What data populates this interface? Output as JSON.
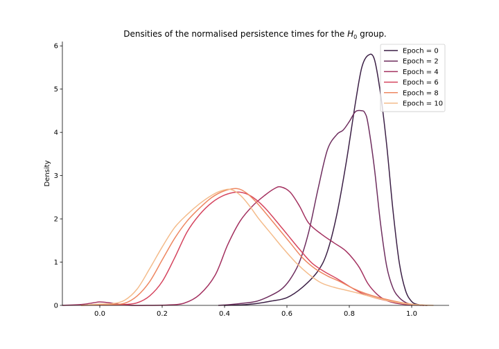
{
  "chart_data": {
    "type": "line",
    "title_prefix": "Densities of the normalised persistence times for the ",
    "title_math_base": "H",
    "title_math_sub": "0",
    "title_suffix": " group.",
    "xlabel": "",
    "ylabel": "Density",
    "xlim": [
      -0.12,
      1.12
    ],
    "ylim": [
      0,
      6.1
    ],
    "xticks": [
      0.0,
      0.2,
      0.4,
      0.6,
      0.8,
      1.0
    ],
    "xtick_labels": [
      "0.0",
      "0.2",
      "0.4",
      "0.6",
      "0.8",
      "1.0"
    ],
    "yticks": [
      0,
      1,
      2,
      3,
      4,
      5,
      6
    ],
    "ytick_labels": [
      "0",
      "1",
      "2",
      "3",
      "4",
      "5",
      "6"
    ],
    "grid": false,
    "legend_position": "top-right",
    "series": [
      {
        "name": "Epoch = 0",
        "color": "#3b1f45",
        "x": [
          0.4,
          0.45,
          0.5,
          0.55,
          0.6,
          0.65,
          0.7,
          0.73,
          0.76,
          0.79,
          0.82,
          0.84,
          0.86,
          0.88,
          0.9,
          0.92,
          0.94,
          0.96,
          0.98,
          1.0,
          1.02,
          1.05
        ],
        "y": [
          0.0,
          0.01,
          0.04,
          0.1,
          0.18,
          0.42,
          0.8,
          1.25,
          2.1,
          3.3,
          4.7,
          5.5,
          5.78,
          5.7,
          4.9,
          3.7,
          2.2,
          1.0,
          0.35,
          0.09,
          0.02,
          0.0
        ]
      },
      {
        "name": "Epoch = 2",
        "color": "#6e2d5e",
        "x": [
          0.38,
          0.42,
          0.46,
          0.5,
          0.54,
          0.58,
          0.61,
          0.64,
          0.67,
          0.7,
          0.73,
          0.76,
          0.78,
          0.8,
          0.82,
          0.84,
          0.85,
          0.86,
          0.88,
          0.9,
          0.92,
          0.94,
          0.96,
          0.98,
          1.0,
          1.03
        ],
        "y": [
          0.0,
          0.02,
          0.05,
          0.09,
          0.2,
          0.36,
          0.6,
          1.0,
          1.7,
          2.7,
          3.6,
          3.95,
          4.05,
          4.25,
          4.48,
          4.5,
          4.45,
          4.2,
          3.2,
          1.9,
          0.9,
          0.4,
          0.18,
          0.07,
          0.02,
          0.0
        ]
      },
      {
        "name": "Epoch = 4",
        "color": "#a3305f",
        "x": [
          -0.12,
          -0.06,
          -0.02,
          0.0,
          0.03,
          0.06,
          0.1,
          0.16,
          0.22,
          0.27,
          0.32,
          0.37,
          0.41,
          0.45,
          0.49,
          0.53,
          0.56,
          0.58,
          0.61,
          0.64,
          0.67,
          0.71,
          0.75,
          0.79,
          0.83,
          0.86,
          0.89,
          0.92,
          0.95,
          0.98,
          1.01,
          1.04
        ],
        "y": [
          0.0,
          0.02,
          0.06,
          0.08,
          0.06,
          0.03,
          0.0,
          0.0,
          0.01,
          0.05,
          0.25,
          0.7,
          1.4,
          1.95,
          2.3,
          2.55,
          2.7,
          2.74,
          2.62,
          2.3,
          1.9,
          1.65,
          1.45,
          1.25,
          0.9,
          0.5,
          0.25,
          0.11,
          0.05,
          0.02,
          0.01,
          0.0
        ]
      },
      {
        "name": "Epoch = 6",
        "color": "#d5445e",
        "x": [
          -0.06,
          0.0,
          0.04,
          0.08,
          0.12,
          0.16,
          0.2,
          0.24,
          0.28,
          0.32,
          0.36,
          0.4,
          0.44,
          0.47,
          0.5,
          0.53,
          0.56,
          0.6,
          0.64,
          0.68,
          0.72,
          0.76,
          0.8,
          0.84,
          0.88,
          0.92,
          0.96,
          1.0,
          1.04
        ],
        "y": [
          0.0,
          0.01,
          0.01,
          0.02,
          0.06,
          0.22,
          0.55,
          1.1,
          1.7,
          2.1,
          2.38,
          2.55,
          2.62,
          2.58,
          2.45,
          2.25,
          2.0,
          1.65,
          1.3,
          0.98,
          0.78,
          0.62,
          0.44,
          0.28,
          0.18,
          0.11,
          0.06,
          0.02,
          0.0
        ]
      },
      {
        "name": "Epoch = 8",
        "color": "#ee8660",
        "x": [
          -0.06,
          0.0,
          0.04,
          0.08,
          0.12,
          0.16,
          0.2,
          0.24,
          0.28,
          0.32,
          0.36,
          0.4,
          0.44,
          0.47,
          0.5,
          0.53,
          0.57,
          0.61,
          0.65,
          0.69,
          0.73,
          0.77,
          0.81,
          0.85,
          0.89,
          0.93,
          0.97,
          1.01,
          1.05
        ],
        "y": [
          0.0,
          0.02,
          0.02,
          0.05,
          0.22,
          0.55,
          1.05,
          1.55,
          1.95,
          2.25,
          2.5,
          2.65,
          2.7,
          2.6,
          2.4,
          2.15,
          1.8,
          1.45,
          1.1,
          0.85,
          0.68,
          0.55,
          0.4,
          0.28,
          0.19,
          0.12,
          0.06,
          0.02,
          0.0
        ]
      },
      {
        "name": "Epoch = 10",
        "color": "#f4bb8a",
        "x": [
          -0.06,
          0.0,
          0.04,
          0.08,
          0.12,
          0.16,
          0.2,
          0.24,
          0.28,
          0.32,
          0.36,
          0.39,
          0.42,
          0.45,
          0.48,
          0.51,
          0.55,
          0.59,
          0.63,
          0.67,
          0.71,
          0.75,
          0.79,
          0.83,
          0.87,
          0.91,
          0.95,
          0.99,
          1.03,
          1.07
        ],
        "y": [
          0.0,
          0.03,
          0.04,
          0.12,
          0.38,
          0.85,
          1.35,
          1.8,
          2.1,
          2.35,
          2.55,
          2.65,
          2.68,
          2.55,
          2.3,
          2.0,
          1.65,
          1.3,
          0.98,
          0.72,
          0.52,
          0.42,
          0.35,
          0.28,
          0.2,
          0.13,
          0.07,
          0.03,
          0.01,
          0.0
        ]
      }
    ]
  }
}
